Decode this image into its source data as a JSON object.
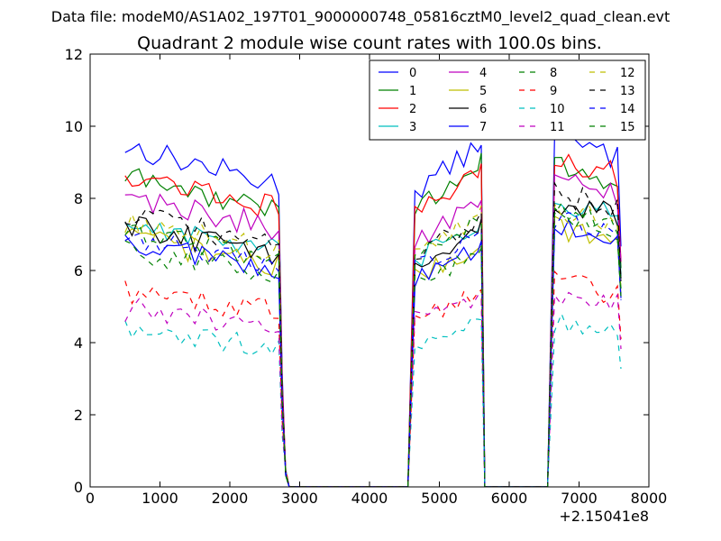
{
  "suptitle": "Data file: modeM0/AS1A02_197T01_9000000748_05816cztM0_level2_quad_clean.evt",
  "chart_data": {
    "type": "line",
    "title": "Quadrant 2 module wise count rates with 100.0s bins.",
    "xlabel": "",
    "ylabel": "",
    "x_offset_label": "+2.15041e8",
    "xlim": [
      0,
      8000
    ],
    "ylim": [
      0,
      12
    ],
    "xticks": [
      0,
      1000,
      2000,
      3000,
      4000,
      5000,
      6000,
      7000,
      8000
    ],
    "yticks": [
      0,
      2,
      4,
      6,
      8,
      10,
      12
    ],
    "legend_position": "top-right",
    "segments": [
      {
        "start": 500,
        "end": 2700,
        "ramp_end": 2850
      },
      {
        "start": 4650,
        "end": 5550,
        "ramp_start": 4550
      },
      {
        "start": 6650,
        "end": 7550,
        "ramp_start": 6550
      }
    ],
    "series": [
      {
        "name": "0",
        "color": "#0000ff",
        "dash": false,
        "levels": [
          9.0,
          8.9,
          9.5
        ]
      },
      {
        "name": "1",
        "color": "#008000",
        "dash": false,
        "levels": [
          8.2,
          8.4,
          8.7
        ]
      },
      {
        "name": "2",
        "color": "#ff0000",
        "dash": false,
        "levels": [
          8.3,
          8.2,
          9.0
        ]
      },
      {
        "name": "3",
        "color": "#00bfbf",
        "dash": false,
        "levels": [
          7.0,
          6.8,
          7.8
        ]
      },
      {
        "name": "4",
        "color": "#bf00bf",
        "dash": false,
        "levels": [
          7.7,
          7.4,
          8.4
        ]
      },
      {
        "name": "5",
        "color": "#bfbf00",
        "dash": false,
        "levels": [
          6.6,
          6.3,
          7.1
        ]
      },
      {
        "name": "6",
        "color": "#000000",
        "dash": false,
        "levels": [
          6.9,
          6.7,
          7.8
        ]
      },
      {
        "name": "7",
        "color": "#0000ff",
        "dash": false,
        "levels": [
          6.5,
          6.2,
          7.1
        ]
      },
      {
        "name": "8",
        "color": "#008000",
        "dash": true,
        "levels": [
          6.3,
          6.1,
          7.5
        ]
      },
      {
        "name": "9",
        "color": "#ff0000",
        "dash": true,
        "levels": [
          5.2,
          5.1,
          5.6
        ]
      },
      {
        "name": "10",
        "color": "#00bfbf",
        "dash": true,
        "levels": [
          4.1,
          4.4,
          4.5
        ]
      },
      {
        "name": "11",
        "color": "#bf00bf",
        "dash": true,
        "levels": [
          4.7,
          5.0,
          5.3
        ]
      },
      {
        "name": "12",
        "color": "#bfbf00",
        "dash": true,
        "levels": [
          7.0,
          7.1,
          7.6
        ]
      },
      {
        "name": "13",
        "color": "#000000",
        "dash": true,
        "levels": [
          7.2,
          7.0,
          8.0
        ]
      },
      {
        "name": "14",
        "color": "#0000ff",
        "dash": true,
        "levels": [
          6.7,
          6.6,
          7.3
        ]
      },
      {
        "name": "15",
        "color": "#008000",
        "dash": true,
        "levels": [
          6.8,
          6.9,
          7.5
        ]
      }
    ]
  }
}
